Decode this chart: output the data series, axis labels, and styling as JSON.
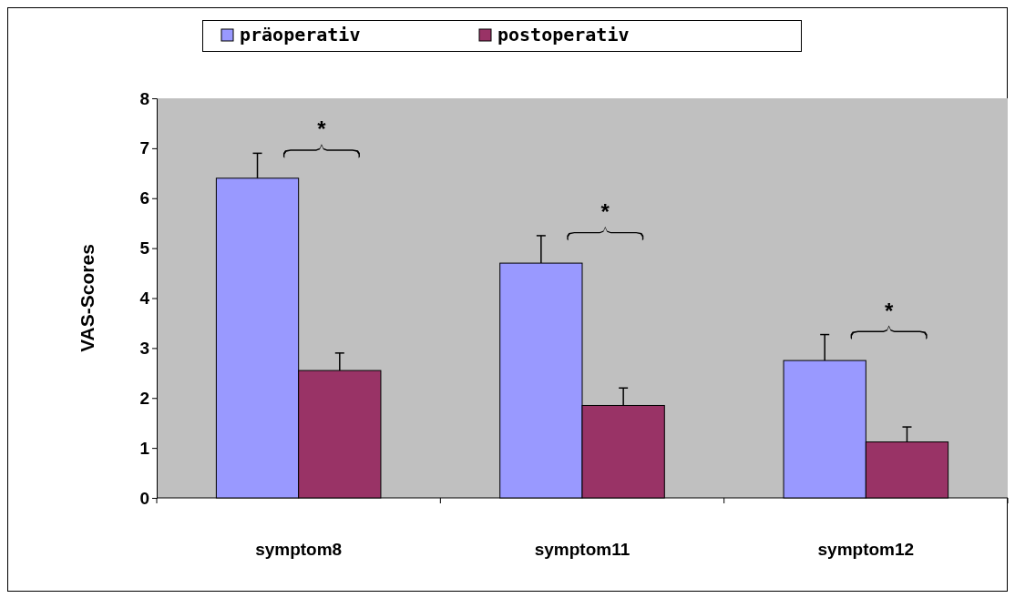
{
  "chart_data": {
    "type": "bar",
    "ylabel": "VAS-Scores",
    "categories": [
      "symptom8",
      "symptom11",
      "symptom12"
    ],
    "series": [
      {
        "name": "präoperativ",
        "color": "#9999ff",
        "values": [
          6.4,
          4.7,
          2.75
        ],
        "errors": [
          [
            6.4,
            6.9
          ],
          [
            4.7,
            5.25
          ],
          [
            2.75,
            3.27
          ]
        ]
      },
      {
        "name": "postoperativ",
        "color": "#993366",
        "values": [
          2.55,
          1.85,
          1.12
        ],
        "errors": [
          [
            2.55,
            2.9
          ],
          [
            1.85,
            2.2
          ],
          [
            1.12,
            1.42
          ]
        ]
      }
    ],
    "ylim": [
      0,
      8
    ],
    "yticks": [
      0,
      1,
      2,
      3,
      4,
      5,
      6,
      7,
      8
    ],
    "grid": false,
    "legend": "top",
    "annotations": [
      "*",
      "*",
      "*"
    ]
  }
}
